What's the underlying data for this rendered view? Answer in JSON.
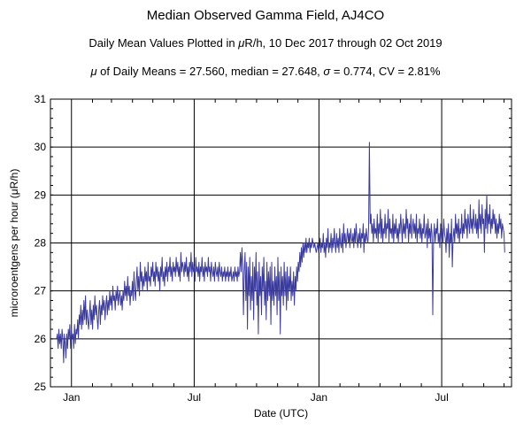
{
  "title": "Median Observed Gamma Field, AJ4CO",
  "subtitle": {
    "prefix": "Daily Mean Values Plotted in ",
    "mu": "μ",
    "suffix": "R/h, 10 Dec 2017 through 02 Oct 2019"
  },
  "stats": {
    "mu": "μ",
    "mean_text": " of Daily Means = 27.560,   median = 27.648,   ",
    "sigma": "σ",
    "rest_text": " = 0.774,   CV = 2.81%"
  },
  "colors": {
    "series": "#3b3b9e",
    "grid": "#000000",
    "axis": "#000000"
  },
  "chart_data": {
    "type": "line",
    "title": "Median Observed Gamma Field, AJ4CO",
    "xlabel": "Date (UTC)",
    "ylabel": "microroentgens per hour (μR/h)",
    "xlim": [
      "2017-12-01",
      "2019-10-12"
    ],
    "ylim": [
      25,
      31
    ],
    "yticks": [
      25,
      26,
      27,
      28,
      29,
      30,
      31
    ],
    "xticks": [
      {
        "date": "2018-01-01",
        "label": "Jan"
      },
      {
        "date": "2018-07-01",
        "label": "Jul"
      },
      {
        "date": "2019-01-01",
        "label": "Jan"
      },
      {
        "date": "2019-07-01",
        "label": "Jul"
      }
    ],
    "grid": true,
    "x_start": "2017-12-10",
    "x_end": "2019-10-02",
    "series": [
      {
        "values": [
          26.0,
          26.1,
          25.8,
          26.2,
          25.9,
          26.1,
          25.8,
          26.2,
          26.0,
          25.5,
          26.1,
          25.9,
          25.6,
          26.1,
          25.8,
          26.2,
          26.0,
          26.3,
          25.8,
          26.2,
          26.0,
          26.1,
          25.8,
          26.3,
          25.9,
          26.2,
          26.1,
          26.4,
          26.0,
          26.5,
          26.3,
          26.7,
          26.2,
          26.6,
          26.3,
          26.8,
          26.4,
          26.9,
          26.3,
          26.6,
          26.4,
          26.2,
          26.5,
          26.8,
          26.3,
          26.6,
          26.2,
          26.7,
          26.4,
          26.9,
          26.5,
          26.7,
          26.4,
          26.2,
          26.6,
          26.8,
          26.3,
          26.7,
          26.5,
          26.9,
          26.6,
          26.8,
          26.4,
          26.7,
          26.9,
          26.5,
          26.8,
          26.6,
          27.0,
          26.7,
          26.9,
          26.6,
          27.1,
          26.8,
          26.9,
          26.6,
          27.0,
          26.8,
          27.1,
          26.7,
          26.9,
          27.0,
          26.7,
          26.9,
          26.6,
          27.0,
          26.8,
          27.2,
          26.9,
          27.1,
          26.8,
          27.3,
          26.9,
          27.1,
          26.7,
          27.0,
          26.9,
          27.2,
          26.8,
          27.4,
          27.0,
          26.8,
          27.2,
          27.5,
          27.0,
          27.3,
          26.9,
          27.6,
          27.2,
          27.4,
          27.0,
          27.3,
          27.1,
          27.5,
          27.2,
          27.4,
          27.0,
          27.6,
          27.2,
          27.3,
          27.1,
          27.5,
          27.3,
          27.6,
          27.2,
          27.4,
          27.1,
          27.6,
          27.3,
          27.5,
          27.2,
          27.4,
          27.0,
          27.5,
          27.3,
          27.7,
          27.2,
          27.4,
          27.1,
          27.5,
          27.3,
          27.6,
          27.2,
          27.5,
          27.4,
          27.7,
          27.3,
          27.5,
          27.2,
          27.6,
          27.4,
          27.5,
          27.3,
          27.7,
          27.4,
          27.6,
          27.3,
          27.5,
          27.2,
          27.8,
          27.4,
          27.6,
          27.5,
          27.3,
          27.6,
          27.4,
          27.7,
          27.3,
          27.5,
          27.2,
          27.6,
          27.4,
          27.8,
          27.3,
          27.6,
          27.4,
          27.5,
          27.2,
          27.7,
          27.4,
          27.5,
          27.3,
          27.6,
          27.2,
          27.5,
          27.4,
          27.7,
          27.3,
          27.5,
          27.2,
          27.6,
          27.4,
          27.5,
          27.3,
          27.7,
          27.4,
          27.5,
          27.2,
          27.6,
          27.4,
          27.3,
          27.5,
          27.2,
          27.6,
          27.4,
          27.3,
          27.5,
          27.2,
          27.6,
          27.4,
          27.3,
          27.5,
          27.2,
          27.4,
          27.3,
          27.5,
          27.2,
          27.4,
          27.3,
          27.5,
          27.2,
          27.4,
          27.3,
          27.5,
          27.2,
          27.3,
          27.4,
          27.2,
          27.5,
          27.3,
          27.4,
          27.2,
          27.5,
          27.3,
          27.4,
          27.8,
          27.4,
          27.9,
          27.5,
          26.5,
          27.4,
          27.8,
          26.8,
          27.6,
          26.2,
          27.5,
          26.9,
          27.7,
          26.6,
          27.3,
          26.8,
          27.6,
          26.4,
          27.5,
          27.0,
          27.8,
          26.7,
          27.4,
          26.1,
          27.6,
          26.9,
          27.3,
          26.5,
          27.5,
          27.0,
          27.7,
          26.7,
          27.2,
          26.4,
          27.6,
          26.8,
          27.4,
          26.9,
          27.5,
          26.3,
          27.6,
          26.8,
          27.2,
          26.7,
          27.5,
          26.9,
          27.3,
          26.5,
          27.7,
          26.8,
          27.4,
          26.1,
          27.5,
          26.9,
          27.3,
          26.7,
          27.6,
          26.9,
          27.4,
          26.6,
          27.5,
          26.8,
          27.3,
          27.0,
          27.5,
          26.8,
          27.2,
          26.9,
          27.4,
          26.7,
          27.3,
          27.0,
          27.5,
          27.2,
          27.6,
          27.4,
          27.8,
          27.5,
          27.9,
          27.6,
          28.0,
          27.7,
          28.0,
          27.8,
          28.1,
          27.8,
          28.0,
          27.9,
          28.1,
          27.8,
          28.0,
          27.9,
          28.1,
          28.0,
          27.9,
          28.0,
          27.9,
          27.8,
          27.9,
          28.0,
          27.8,
          27.9,
          28.1,
          27.8,
          28.0,
          27.9,
          28.2,
          27.8,
          28.0,
          27.7,
          28.1,
          27.9,
          28.3,
          27.8,
          28.0,
          27.9,
          28.2,
          27.8,
          28.1,
          27.9,
          28.3,
          28.0,
          27.8,
          28.2,
          27.9,
          28.1,
          27.8,
          28.3,
          28.0,
          27.9,
          28.2,
          27.8,
          28.4,
          28.0,
          28.2,
          27.9,
          28.1,
          28.3,
          28.0,
          28.2,
          27.9,
          28.3,
          28.1,
          28.0,
          28.2,
          27.9,
          28.3,
          28.0,
          28.4,
          28.1,
          27.9,
          28.2,
          28.0,
          28.3,
          27.9,
          28.2,
          28.1,
          28.4,
          27.8,
          28.2,
          28.0,
          28.3,
          28.1,
          28.0,
          28.3,
          30.1,
          28.4,
          28.6,
          28.2,
          28.4,
          28.0,
          28.5,
          28.2,
          28.3,
          28.1,
          28.6,
          28.0,
          28.4,
          28.2,
          28.7,
          28.1,
          28.5,
          28.0,
          28.3,
          28.2,
          28.6,
          28.1,
          28.4,
          28.3,
          28.7,
          28.0,
          28.5,
          28.2,
          28.3,
          28.1,
          28.6,
          28.0,
          28.4,
          28.2,
          28.5,
          28.1,
          28.3,
          28.0,
          28.4,
          28.2,
          28.6,
          28.3,
          28.0,
          28.5,
          28.2,
          28.4,
          28.1,
          28.7,
          28.3,
          28.5,
          28.0,
          28.4,
          28.2,
          28.6,
          28.1,
          28.3,
          28.5,
          28.2,
          28.4,
          28.1,
          28.6,
          28.0,
          28.3,
          28.2,
          28.5,
          28.1,
          28.4,
          28.0,
          28.3,
          28.2,
          28.6,
          28.1,
          28.2,
          28.4,
          27.9,
          28.5,
          28.1,
          28.3,
          28.0,
          28.4,
          28.2,
          26.5,
          28.1,
          28.4,
          28.0,
          28.3,
          28.2,
          28.5,
          28.0,
          28.2,
          27.9,
          28.4,
          28.1,
          28.3,
          28.0,
          28.5,
          28.2,
          28.1,
          27.8,
          28.3,
          28.0,
          28.4,
          27.7,
          28.2,
          28.0,
          28.5,
          27.5,
          28.1,
          28.3,
          28.0,
          28.6,
          28.2,
          28.4,
          28.1,
          28.5,
          28.0,
          28.3,
          28.2,
          28.6,
          28.1,
          28.4,
          28.2,
          28.7,
          28.3,
          28.5,
          28.1,
          28.6,
          28.4,
          28.2,
          28.8,
          28.3,
          28.5,
          28.2,
          28.7,
          28.4,
          28.3,
          28.6,
          28.2,
          28.5,
          28.1,
          28.9,
          28.3,
          28.6,
          28.2,
          28.8,
          28.4,
          28.5,
          27.8,
          28.7,
          28.3,
          29.0,
          28.2,
          28.6,
          28.4,
          28.8,
          28.2,
          28.5,
          28.3,
          28.7,
          28.4,
          28.6,
          28.2,
          28.5,
          28.1,
          28.4,
          28.2,
          28.6,
          28.3,
          28.5,
          28.1,
          28.4,
          28.3,
          28.2,
          27.8
        ]
      }
    ]
  }
}
